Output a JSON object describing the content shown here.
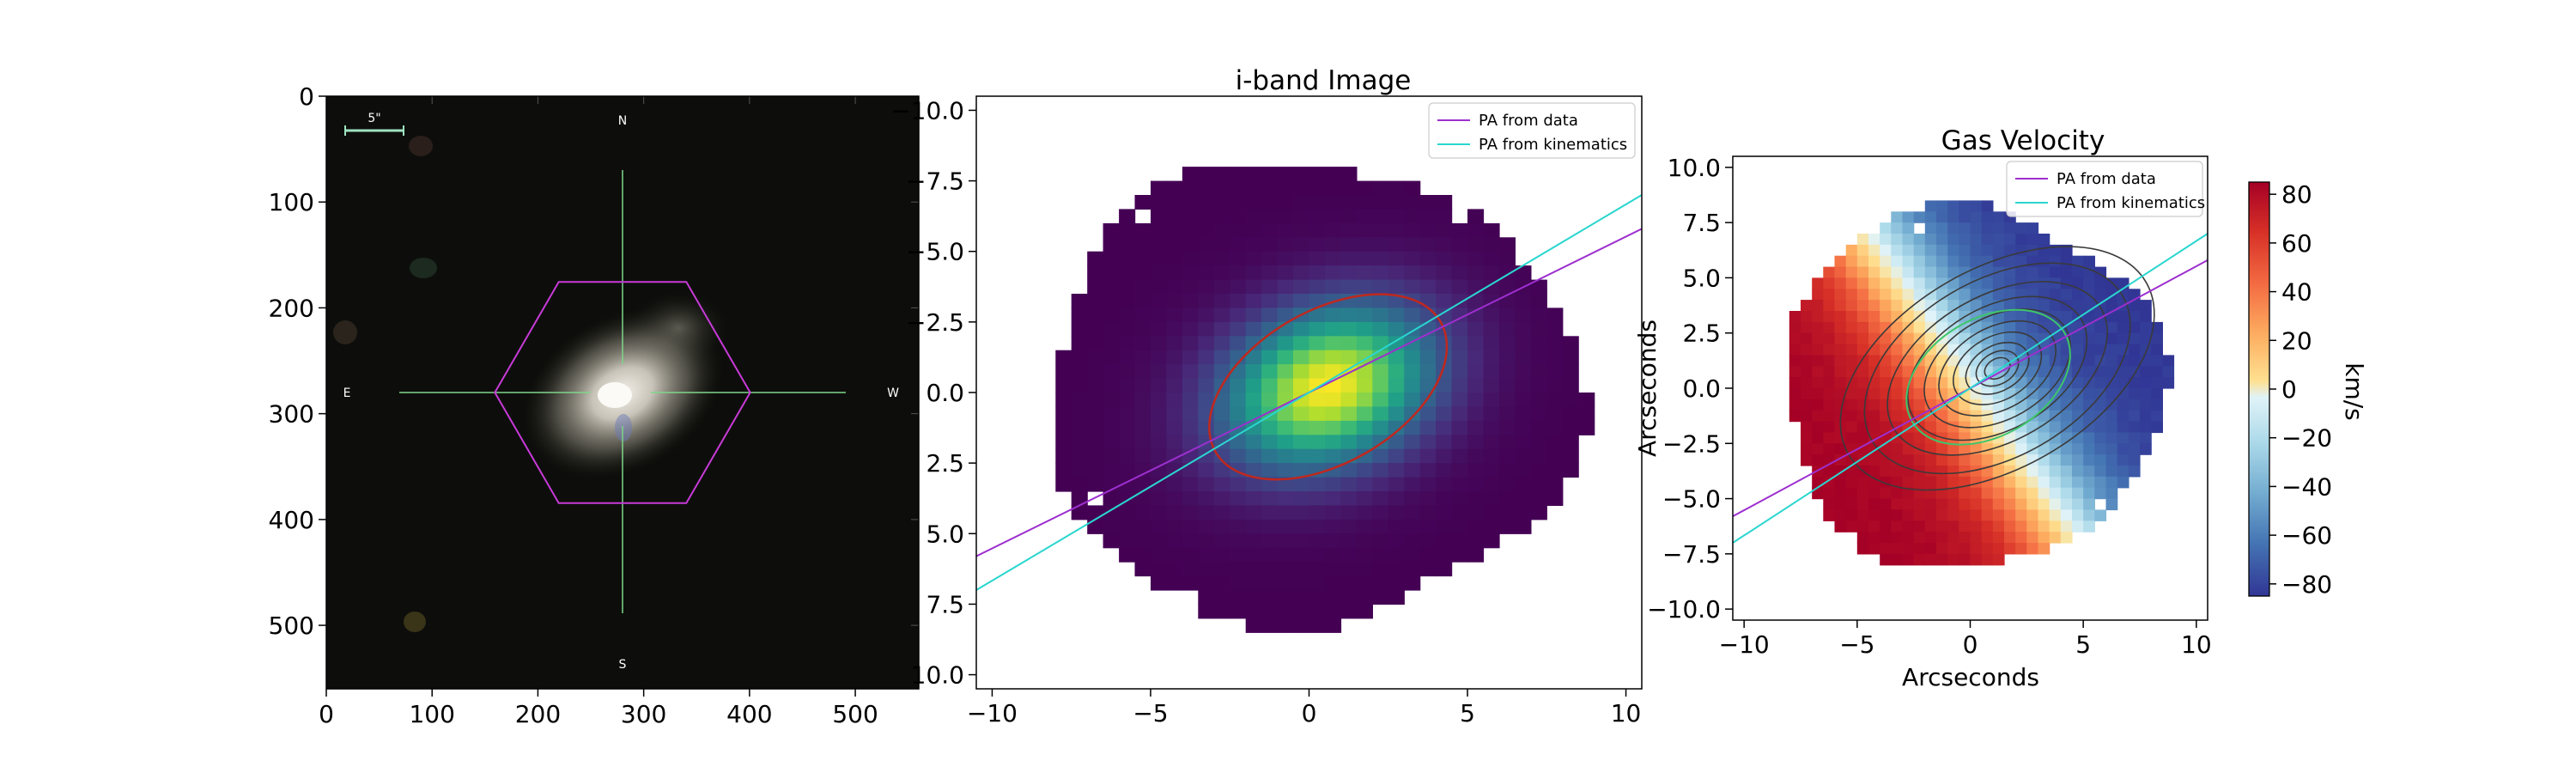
{
  "chart_data": [
    {
      "type": "image",
      "panel": "sdss-cutout",
      "title": "",
      "xlabel": "",
      "ylabel": "",
      "xlim": [
        0,
        560
      ],
      "ylim": [
        560,
        0
      ],
      "xticks": [
        0,
        100,
        200,
        300,
        400,
        500
      ],
      "yticks": [
        0,
        100,
        200,
        300,
        400,
        500
      ],
      "scale_bar_label": "5\"",
      "compass": {
        "north": "N",
        "south": "S",
        "east": "E",
        "west": "W"
      },
      "galaxy_center": [
        280,
        280
      ],
      "hexagon_radius": 95
    },
    {
      "type": "heatmap",
      "panel": "i-band",
      "title": "i-band Image",
      "xlabel": "",
      "ylabel": "",
      "xlim": [
        -10.5,
        10.5
      ],
      "ylim": [
        10.5,
        -10.5
      ],
      "xticks": [
        -10,
        -5,
        0,
        5,
        10
      ],
      "yticks": [
        -10.0,
        -7.5,
        -5.0,
        -2.5,
        0.0,
        2.5,
        5.0,
        7.5,
        10.0
      ],
      "legend_position": "upper right",
      "series": [
        {
          "name": "PA from data",
          "color": "#9d2fcf",
          "x": [
            -10.5,
            10.5
          ],
          "y": [
            5.8,
            -5.8
          ]
        },
        {
          "name": "PA from kinematics",
          "color": "#2ad6cf",
          "x": [
            -10.5,
            10.5
          ],
          "y": [
            7.0,
            -7.0
          ]
        }
      ],
      "ellipse": {
        "color": "#c0281e",
        "center": [
          0.6,
          -0.2
        ],
        "a": 4.1,
        "b": 2.7,
        "angle_deg": -30
      }
    },
    {
      "type": "heatmap",
      "panel": "gas-velocity",
      "title": "Gas Velocity",
      "xlabel": "Arcseconds",
      "ylabel": "Arcseconds",
      "xlim": [
        -10.5,
        10.5
      ],
      "ylim": [
        -10.5,
        10.5
      ],
      "xticks": [
        -10,
        -5,
        0,
        5,
        10
      ],
      "yticks": [
        10.0,
        7.5,
        5.0,
        2.5,
        0.0,
        -2.5,
        -5.0,
        -7.5,
        -10.0
      ],
      "legend_position": "upper right",
      "series": [
        {
          "name": "PA from data",
          "color": "#9d2fcf",
          "x": [
            -10.5,
            10.5
          ],
          "y": [
            -5.8,
            5.8
          ]
        },
        {
          "name": "PA from kinematics",
          "color": "#2ad6cf",
          "x": [
            -10.5,
            10.5
          ],
          "y": [
            -7.0,
            7.0
          ]
        }
      ],
      "colorbar": {
        "label": "km/s",
        "vmin": -85,
        "vmax": 85,
        "ticks": [
          80,
          60,
          40,
          20,
          0,
          -20,
          -40,
          -60,
          -80
        ],
        "cmap": "RdYlBu_r"
      },
      "contour_center": [
        1.2,
        0.9
      ],
      "contour_angle_deg": 30
    }
  ]
}
